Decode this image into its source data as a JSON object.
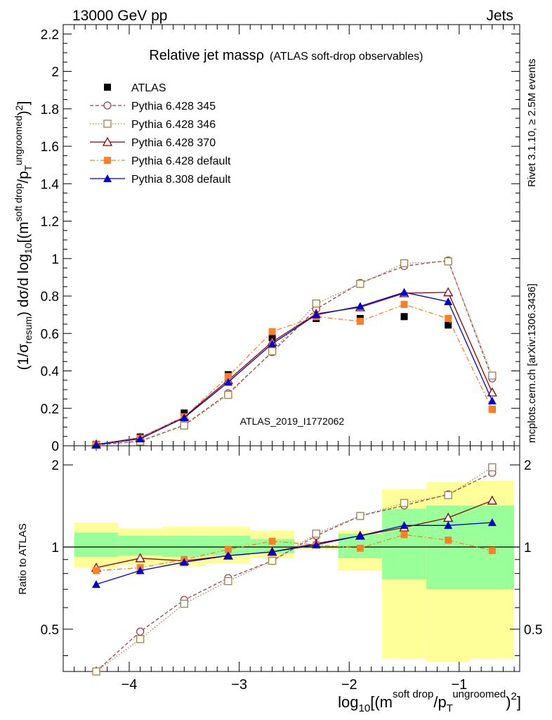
{
  "header": {
    "left": "13000 GeV pp",
    "right": "Jets"
  },
  "side_labels": {
    "rivet": "Rivet 3.1.10, ≥ 2.5M events",
    "mcplots": "mcplots.cern.ch [arXiv:1306.3436]"
  },
  "chart_data": {
    "type": "scatter",
    "title": "Relative jet massρ",
    "subtitle": "(ATLAS soft-drop observables)",
    "analysis_label": "ATLAS_2019_I1772062",
    "ylabel_main": "(1/σresum) dσ/d log10[(m soft drop/pT ungroomed)2]",
    "ylabel_ratio": "Ratio to ATLAS",
    "xlabel": "log10[(m soft drop/pT ungroomed)2]",
    "xlim": [
      -4.6,
      -0.45
    ],
    "ylim_main": [
      0,
      2.25
    ],
    "ylim_ratio": [
      0.35,
      2.35
    ],
    "x_ticks": [
      "−4",
      "−3",
      "−2",
      "−1"
    ],
    "x_tick_values": [
      -4,
      -3,
      -2,
      -1
    ],
    "y_ticks_main": [
      "0",
      "0.2",
      "0.4",
      "0.6",
      "0.8",
      "1",
      "1.2",
      "1.4",
      "1.6",
      "1.8",
      "2",
      "2.2"
    ],
    "y_tick_values_main": [
      0,
      0.2,
      0.4,
      0.6,
      0.8,
      1,
      1.2,
      1.4,
      1.6,
      1.8,
      2,
      2.2
    ],
    "y_ticks_ratio": [
      "0.5",
      "1",
      "2"
    ],
    "y_tick_values_ratio": [
      0.5,
      1,
      2
    ],
    "x": [
      -4.3,
      -3.9,
      -3.5,
      -3.1,
      -2.7,
      -2.3,
      -1.9,
      -1.5,
      -1.1,
      -0.7
    ],
    "bin_edges": [
      -4.5,
      -4.1,
      -3.7,
      -3.3,
      -2.9,
      -2.5,
      -2.1,
      -1.7,
      -1.3,
      -0.9,
      -0.5
    ],
    "band_yellow": [
      [
        0.84,
        1.23
      ],
      [
        0.86,
        1.17
      ],
      [
        0.85,
        1.19
      ],
      [
        0.87,
        1.19
      ],
      [
        0.91,
        1.15
      ],
      [
        0.98,
        1.02
      ],
      [
        0.82,
        1.15
      ],
      [
        0.39,
        1.63
      ],
      [
        0.38,
        1.73
      ],
      [
        0.39,
        1.75
      ]
    ],
    "band_green": [
      [
        0.92,
        1.13
      ],
      [
        0.93,
        1.1
      ],
      [
        0.92,
        1.1
      ],
      [
        0.93,
        1.1
      ],
      [
        0.95,
        1.07
      ],
      [
        0.99,
        1.01
      ],
      [
        0.91,
        1.12
      ],
      [
        0.76,
        1.38
      ],
      [
        0.7,
        1.42
      ],
      [
        0.7,
        1.42
      ]
    ],
    "series": [
      {
        "name": "ATLAS",
        "color": "#000000",
        "marker": "square-filled",
        "line": "none",
        "values": [
          0.008,
          0.047,
          0.175,
          0.38,
          0.578,
          0.68,
          0.68,
          0.69,
          0.645,
          0.195
        ],
        "ratio": [
          1,
          1,
          1,
          1,
          1,
          1,
          1,
          1,
          1,
          1
        ]
      },
      {
        "name": "Pythia 6.428 345",
        "color": "#a0404d",
        "marker": "circle-open",
        "line": "dashed",
        "values": [
          0.004,
          0.025,
          0.11,
          0.28,
          0.5,
          0.73,
          0.87,
          0.96,
          0.99,
          0.36
        ],
        "ratio": [
          0.33,
          0.49,
          0.64,
          0.77,
          0.89,
          1.1,
          1.3,
          1.42,
          1.56,
          1.87
        ]
      },
      {
        "name": "Pythia 6.428 346",
        "color": "#a08040",
        "marker": "square-open",
        "line": "dotted",
        "values": [
          0.004,
          0.023,
          0.108,
          0.272,
          0.505,
          0.76,
          0.865,
          0.975,
          0.985,
          0.375
        ],
        "ratio": [
          0.33,
          0.46,
          0.62,
          0.75,
          0.89,
          1.12,
          1.3,
          1.45,
          1.55,
          1.96
        ]
      },
      {
        "name": "Pythia 6.428 370",
        "color": "#8b0000",
        "marker": "triangle-open",
        "line": "solid",
        "values": [
          0.007,
          0.043,
          0.155,
          0.35,
          0.555,
          0.705,
          0.74,
          0.815,
          0.82,
          0.285
        ],
        "ratio": [
          0.84,
          0.91,
          0.89,
          0.93,
          0.96,
          1.03,
          1.1,
          1.18,
          1.28,
          1.48
        ]
      },
      {
        "name": "Pythia 6.428 default",
        "color": "#ff7f27",
        "marker": "square-filled",
        "line": "dashdot",
        "values": [
          0.006,
          0.04,
          0.155,
          0.37,
          0.61,
          0.69,
          0.665,
          0.755,
          0.68,
          0.195
        ],
        "ratio": [
          0.82,
          0.84,
          0.9,
          0.98,
          1.05,
          1.02,
          0.99,
          1.11,
          1.06,
          0.97
        ]
      },
      {
        "name": "Pythia 8.308 default",
        "color": "#0000cc",
        "marker": "triangle-filled",
        "line": "solid",
        "values": [
          0.006,
          0.037,
          0.15,
          0.34,
          0.545,
          0.7,
          0.745,
          0.82,
          0.77,
          0.24
        ],
        "ratio": [
          0.73,
          0.82,
          0.88,
          0.93,
          0.96,
          1.02,
          1.1,
          1.2,
          1.2,
          1.23
        ]
      }
    ]
  }
}
